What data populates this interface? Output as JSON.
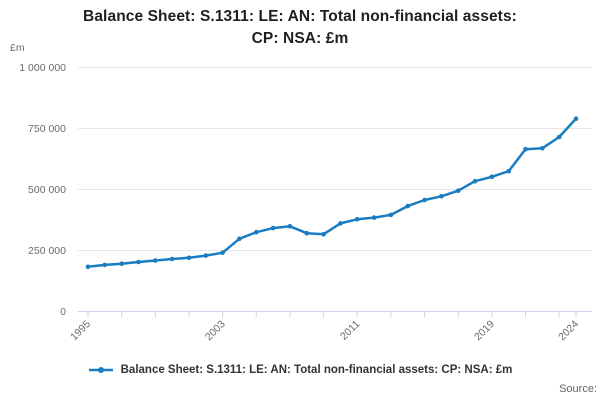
{
  "title": {
    "line1": "Balance Sheet: S.1311: LE: AN: Total non-financial assets:",
    "line2": "CP: NSA: £m"
  },
  "y_axis": {
    "unit": "£m",
    "tick_values": [
      0,
      250000,
      500000,
      750000,
      1000000
    ],
    "tick_labels": [
      "0",
      "250 000",
      "500 000",
      "750 000",
      "1 000 000"
    ]
  },
  "x_axis": {
    "tick_years": [
      1995,
      1997,
      1999,
      2001,
      2003,
      2005,
      2007,
      2009,
      2011,
      2013,
      2015,
      2017,
      2019,
      2021,
      2023,
      2024
    ],
    "labeled_years": [
      1995,
      2003,
      2011,
      2019,
      2024
    ]
  },
  "legend": {
    "label": "Balance Sheet: S.1311: LE: AN: Total non-financial assets: CP: NSA: £m"
  },
  "footer": {
    "source_label": "Source:"
  },
  "colors": {
    "line": "#1a7dc2",
    "grid": "#e6e6e6",
    "axis": "#ccd6eb",
    "muted_text": "#6b6b6b",
    "title_text": "#1f1f1f"
  },
  "chart_data": {
    "type": "line",
    "title": "Balance Sheet: S.1311: LE: AN: Total non-financial assets: CP: NSA: £m",
    "xlabel": "",
    "ylabel": "£m",
    "ylim": [
      0,
      1000000
    ],
    "grid": true,
    "legend_position": "bottom",
    "x": [
      1995,
      1996,
      1997,
      1998,
      1999,
      2000,
      2001,
      2002,
      2003,
      2004,
      2005,
      2006,
      2007,
      2008,
      2009,
      2010,
      2011,
      2012,
      2013,
      2014,
      2015,
      2016,
      2017,
      2018,
      2019,
      2020,
      2021,
      2022,
      2023,
      2024
    ],
    "series": [
      {
        "name": "Balance Sheet: S.1311: LE: AN: Total non-financial assets: CP: NSA: £m",
        "values": [
          183000,
          191000,
          196000,
          203000,
          209000,
          215000,
          220000,
          229000,
          241000,
          298000,
          325000,
          342000,
          349000,
          321000,
          317000,
          361000,
          378000,
          385000,
          396000,
          432000,
          457000,
          472000,
          495000,
          534000,
          552000,
          575000,
          665000,
          669000,
          715000,
          790000
        ]
      }
    ]
  }
}
